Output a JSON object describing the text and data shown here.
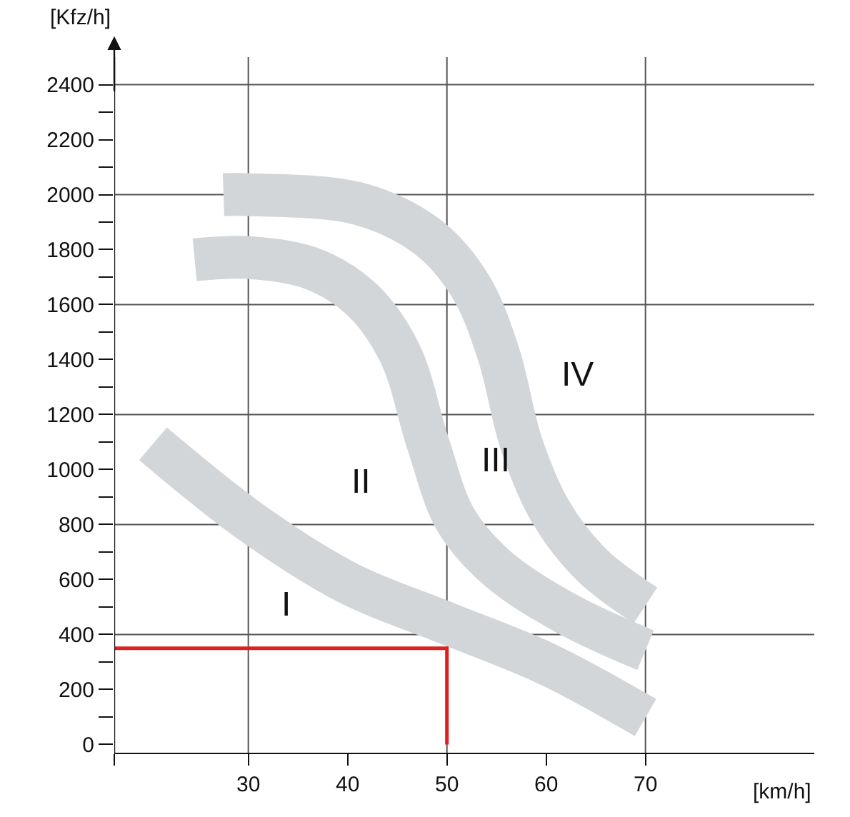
{
  "chart_data": {
    "type": "line",
    "xlabel": "[km/h]",
    "ylabel": "[Kfz/h]",
    "xlim": [
      16.5,
      87
    ],
    "ylim": [
      -30,
      2500
    ],
    "xticks": [
      {
        "value": 16.5,
        "label": null
      },
      30,
      40,
      50,
      60,
      70
    ],
    "yticks": [
      0,
      {
        "value": 100,
        "label": null
      },
      200,
      {
        "value": 300,
        "label": null
      },
      400,
      {
        "value": 500,
        "label": null
      },
      600,
      {
        "value": 700,
        "label": null
      },
      800,
      {
        "value": 900,
        "label": null
      },
      1000,
      {
        "value": 1100,
        "label": null
      },
      1200,
      {
        "value": 1300,
        "label": null
      },
      1400,
      {
        "value": 1500,
        "label": null
      },
      1600,
      {
        "value": 1700,
        "label": null
      },
      1800,
      {
        "value": 1900,
        "label": null
      },
      2000,
      {
        "value": 2100,
        "label": null
      },
      2200,
      {
        "value": 2300,
        "label": null
      },
      2400
    ],
    "grid": true,
    "marker": "none",
    "line_style": "solid",
    "series": [
      {
        "color": "#d3d6d9",
        "x": [
          20.4,
          30,
          40,
          50,
          60,
          70
        ],
        "values": [
          1094,
          816,
          588,
          441,
          294,
          98
        ]
      },
      {
        "color": "#d3d6d9",
        "x": [
          24.6,
          30,
          36.4,
          41.5,
          45.3,
          48.1,
          50.9,
          55.2,
          62.2,
          70
        ],
        "values": [
          1763,
          1771,
          1731,
          1616,
          1420,
          1094,
          816,
          637,
          473,
          343
        ]
      },
      {
        "color": "#d3d6d9",
        "x": [
          27.5,
          30,
          41.1,
          48.1,
          52.4,
          55.2,
          57.5,
          60.4,
          64.6,
          70
        ],
        "values": [
          2000,
          2000,
          1967,
          1845,
          1665,
          1420,
          1094,
          849,
          653,
          506
        ]
      },
      {
        "color": "#e02020",
        "x": [
          16.5,
          50,
          50
        ],
        "values": [
          350,
          350,
          0
        ]
      }
    ],
    "annotations": [
      "I",
      "II",
      "III",
      "IV"
    ]
  }
}
